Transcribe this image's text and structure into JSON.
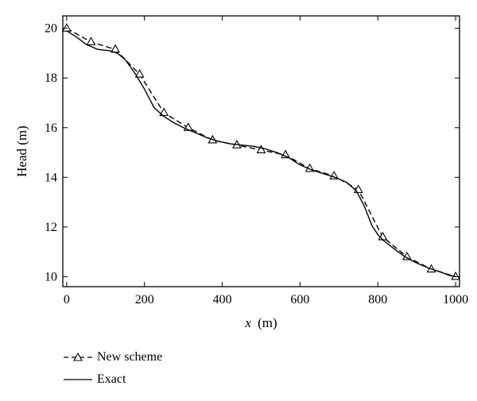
{
  "chart_data": {
    "type": "line",
    "xlabel_main": "x",
    "xlabel_unit": "(m)",
    "ylabel": "Head (m)",
    "xlim": [
      -10,
      1010
    ],
    "ylim": [
      9.6,
      20.5
    ],
    "xticks": [
      0,
      200,
      400,
      600,
      800,
      1000
    ],
    "yticks": [
      10,
      12,
      14,
      16,
      18,
      20
    ],
    "grid": false,
    "legend_position": "bottom-left, below plot",
    "series": [
      {
        "name": "New scheme",
        "style": "dashed",
        "marker": "triangle",
        "x": [
          0,
          62.5,
          125,
          187.5,
          250,
          312.5,
          375,
          437.5,
          500,
          562.5,
          625,
          687.5,
          750,
          812.5,
          875,
          937.5,
          1000
        ],
        "y": [
          20.0,
          19.45,
          19.15,
          18.15,
          16.6,
          16.0,
          15.5,
          15.3,
          15.1,
          14.9,
          14.35,
          14.05,
          13.5,
          11.6,
          10.8,
          10.3,
          10.0
        ]
      },
      {
        "name": "Exact",
        "style": "solid",
        "marker": "none",
        "x": [
          0,
          25,
          50,
          80,
          110,
          130,
          150,
          175,
          200,
          225,
          250,
          275,
          300,
          330,
          360,
          390,
          420,
          450,
          480,
          510,
          540,
          570,
          600,
          630,
          660,
          690,
          720,
          745,
          765,
          785,
          800,
          815,
          840,
          870,
          900,
          930,
          960,
          985,
          1000
        ],
        "y": [
          19.9,
          19.65,
          19.35,
          19.15,
          19.1,
          19.0,
          18.75,
          18.2,
          17.55,
          16.8,
          16.45,
          16.2,
          16.0,
          15.8,
          15.6,
          15.45,
          15.35,
          15.3,
          15.25,
          15.15,
          15.0,
          14.8,
          14.5,
          14.3,
          14.15,
          14.0,
          13.8,
          13.45,
          12.85,
          12.05,
          11.7,
          11.45,
          11.15,
          10.8,
          10.55,
          10.35,
          10.2,
          10.05,
          10.0
        ]
      }
    ]
  }
}
